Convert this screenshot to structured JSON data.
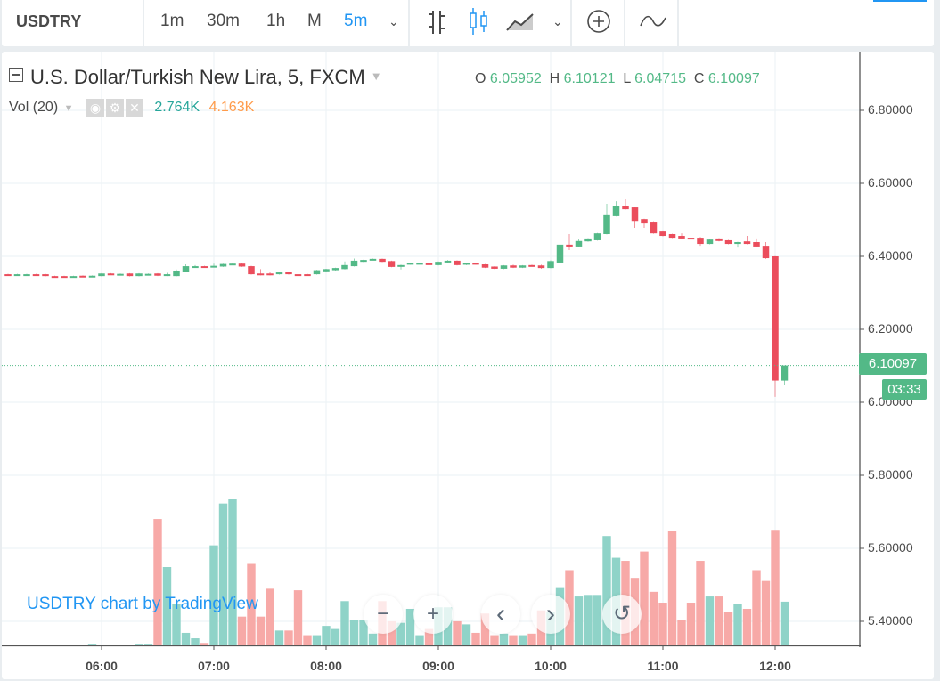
{
  "toolbar": {
    "symbol": "USDTRY",
    "intervals": [
      "1m",
      "30m",
      "1h",
      "M",
      "5m"
    ],
    "active_interval": "5m",
    "icons": [
      "chevron-down-icon",
      "bar-chart-icon",
      "candlestick-icon",
      "area-chart-icon",
      "chevron-down-icon",
      "add-compare-icon",
      "indicators-icon"
    ],
    "accent": "#2196f3"
  },
  "legend": {
    "title": "U.S. Dollar/Turkish New Lira, 5, FXCM",
    "o_label": "O",
    "o": "6.05952",
    "h_label": "H",
    "h": "6.10121",
    "l_label": "L",
    "l": "6.04715",
    "c_label": "C",
    "c": "6.10097",
    "vol_label": "Vol (20)",
    "vol_value": "2.764K",
    "vol_ma": "4.163K"
  },
  "watermark": "USDTRY chart by TradingView",
  "nav_buttons": [
    {
      "name": "zoom-out",
      "glyph": "−"
    },
    {
      "name": "zoom-in",
      "glyph": "+"
    },
    {
      "name": "scroll-left",
      "glyph": "‹"
    },
    {
      "name": "scroll-right",
      "glyph": "›"
    },
    {
      "name": "reset",
      "glyph": "↺"
    }
  ],
  "last_price": "6.10097",
  "countdown": "03:33",
  "colors": {
    "up": "#53b987",
    "down": "#eb4d5c",
    "vol_up": "#8fd3c8",
    "vol_down": "#f7a9a7",
    "grid": "#eef3f6"
  },
  "chart_data": {
    "type": "candlestick",
    "price_ticks": [
      "6.80000",
      "6.60000",
      "6.40000",
      "6.20000",
      "6.00000",
      "5.80000",
      "5.60000",
      "5.40000"
    ],
    "time_ticks": [
      "06:00",
      "07:00",
      "08:00",
      "09:00",
      "10:00",
      "11:00",
      "12:00"
    ],
    "ylim": [
      5.335,
      6.95
    ],
    "volume_unit": "K",
    "candles": [
      [
        "05:10",
        6.351,
        6.352,
        6.348,
        6.349,
        0
      ],
      [
        "05:15",
        6.349,
        6.352,
        6.348,
        6.351,
        0
      ],
      [
        "05:20",
        6.349,
        6.352,
        6.348,
        6.351,
        0
      ],
      [
        "05:25",
        6.351,
        6.352,
        6.348,
        6.349,
        0
      ],
      [
        "05:30",
        6.351,
        6.352,
        6.345,
        6.346,
        0
      ],
      [
        "05:35",
        6.346,
        6.347,
        6.344,
        6.345,
        0
      ],
      [
        "05:40",
        6.346,
        6.347,
        6.344,
        6.345,
        0
      ],
      [
        "05:45",
        6.345,
        6.347,
        6.344,
        6.346,
        0
      ],
      [
        "05:50",
        6.347,
        6.348,
        6.344,
        6.345,
        0
      ],
      [
        "05:55",
        6.345,
        6.348,
        6.344,
        6.347,
        0.05
      ],
      [
        "06:00",
        6.346,
        6.354,
        6.345,
        6.353,
        0
      ],
      [
        "06:05",
        6.353,
        6.354,
        6.35,
        6.351,
        0
      ],
      [
        "06:10",
        6.351,
        6.353,
        6.35,
        6.352,
        0
      ],
      [
        "06:15",
        6.353,
        6.354,
        6.345,
        6.346,
        0
      ],
      [
        "06:20",
        6.346,
        6.354,
        6.345,
        6.353,
        0.05
      ],
      [
        "06:25",
        6.351,
        6.353,
        6.35,
        6.352,
        0.05
      ],
      [
        "06:30",
        6.353,
        6.354,
        6.346,
        6.347,
        8.1
      ],
      [
        "06:35",
        6.348,
        6.355,
        6.346,
        6.351,
        5.0
      ],
      [
        "06:40",
        6.346,
        6.364,
        6.345,
        6.361,
        2.6
      ],
      [
        "06:45",
        6.358,
        6.378,
        6.357,
        6.373,
        0.75
      ],
      [
        "06:50",
        6.371,
        6.376,
        6.37,
        6.373,
        0.4
      ],
      [
        "06:55",
        6.373,
        6.374,
        6.37,
        6.371,
        0.1
      ],
      [
        "07:00",
        6.371,
        6.38,
        6.37,
        6.374,
        6.4
      ],
      [
        "07:05",
        6.372,
        6.38,
        6.371,
        6.379,
        9.1
      ],
      [
        "07:10",
        6.378,
        6.381,
        6.377,
        6.38,
        9.4
      ],
      [
        "07:15",
        6.38,
        6.383,
        6.371,
        6.372,
        1.8
      ],
      [
        "07:20",
        6.373,
        6.374,
        6.35,
        6.351,
        5.2
      ],
      [
        "07:25",
        6.353,
        6.365,
        6.348,
        6.349,
        1.8
      ],
      [
        "07:30",
        6.353,
        6.358,
        6.348,
        6.349,
        3.6
      ],
      [
        "07:35",
        6.351,
        6.357,
        6.35,
        6.356,
        0.9
      ],
      [
        "07:40",
        6.357,
        6.358,
        6.35,
        6.351,
        0.9
      ],
      [
        "07:45",
        6.351,
        6.352,
        6.348,
        6.349,
        3.5
      ],
      [
        "07:50",
        6.351,
        6.352,
        6.348,
        6.349,
        0.6
      ],
      [
        "07:55",
        6.351,
        6.363,
        6.35,
        6.362,
        0.6
      ],
      [
        "08:00",
        6.359,
        6.366,
        6.358,
        6.365,
        1.2
      ],
      [
        "08:05",
        6.362,
        6.369,
        6.361,
        6.368,
        1.0
      ],
      [
        "08:10",
        6.365,
        6.386,
        6.364,
        6.376,
        2.8
      ],
      [
        "08:15",
        6.373,
        6.394,
        6.372,
        6.388,
        1.6
      ],
      [
        "08:20",
        6.385,
        6.391,
        6.384,
        6.39,
        1.6
      ],
      [
        "08:25",
        6.39,
        6.394,
        6.389,
        6.393,
        0.7
      ],
      [
        "08:30",
        6.393,
        6.394,
        6.384,
        6.385,
        2.8
      ],
      [
        "08:35",
        6.387,
        6.388,
        6.37,
        6.371,
        1.5
      ],
      [
        "08:40",
        6.372,
        6.377,
        6.364,
        6.376,
        1.4
      ],
      [
        "08:45",
        6.378,
        6.383,
        6.377,
        6.382,
        2.3
      ],
      [
        "08:50",
        6.381,
        6.383,
        6.38,
        6.382,
        0.6
      ],
      [
        "08:55",
        6.382,
        6.388,
        6.375,
        6.376,
        1.0
      ],
      [
        "09:00",
        6.376,
        6.386,
        6.375,
        6.385,
        2.4
      ],
      [
        "09:05",
        6.384,
        6.39,
        6.383,
        6.388,
        2.4
      ],
      [
        "09:10",
        6.388,
        6.389,
        6.375,
        6.376,
        1.5
      ],
      [
        "09:15",
        6.377,
        6.383,
        6.376,
        6.382,
        1.3
      ],
      [
        "09:20",
        6.382,
        6.383,
        6.377,
        6.378,
        0.75
      ],
      [
        "09:25",
        6.378,
        6.379,
        6.368,
        6.369,
        2.0
      ],
      [
        "09:30",
        6.372,
        6.373,
        6.365,
        6.366,
        0.6
      ],
      [
        "09:35",
        6.366,
        6.376,
        6.365,
        6.375,
        0.7
      ],
      [
        "09:40",
        6.375,
        6.377,
        6.368,
        6.369,
        0.6
      ],
      [
        "09:45",
        6.369,
        6.376,
        6.368,
        6.375,
        0.6
      ],
      [
        "09:50",
        6.376,
        6.377,
        6.372,
        6.373,
        0.7
      ],
      [
        "09:55",
        6.375,
        6.377,
        6.366,
        6.368,
        2.2
      ],
      [
        "10:00",
        6.368,
        6.389,
        6.367,
        6.387,
        2.1
      ],
      [
        "10:05",
        6.383,
        6.444,
        6.382,
        6.432,
        3.7
      ],
      [
        "10:10",
        6.432,
        6.461,
        6.417,
        6.427,
        4.8
      ],
      [
        "10:15",
        6.427,
        6.447,
        6.426,
        6.442,
        3.1
      ],
      [
        "10:20",
        6.441,
        6.45,
        6.44,
        6.449,
        3.2
      ],
      [
        "10:25",
        6.444,
        6.464,
        6.443,
        6.463,
        3.2
      ],
      [
        "10:30",
        6.461,
        6.544,
        6.46,
        6.515,
        7.0
      ],
      [
        "10:35",
        6.51,
        6.551,
        6.509,
        6.539,
        5.6
      ],
      [
        "10:40",
        6.539,
        6.556,
        6.528,
        6.529,
        5.4
      ],
      [
        "10:45",
        6.534,
        6.535,
        6.478,
        6.497,
        4.3
      ],
      [
        "10:50",
        6.502,
        6.503,
        6.478,
        6.49,
        6.0
      ],
      [
        "10:55",
        6.495,
        6.496,
        6.462,
        6.463,
        3.4
      ],
      [
        "11:00",
        6.468,
        6.471,
        6.455,
        6.456,
        2.7
      ],
      [
        "11:05",
        6.461,
        6.462,
        6.45,
        6.451,
        7.3
      ],
      [
        "11:10",
        6.456,
        6.463,
        6.448,
        6.449,
        1.6
      ],
      [
        "11:15",
        6.451,
        6.463,
        6.448,
        6.449,
        2.7
      ],
      [
        "11:20",
        6.451,
        6.453,
        6.429,
        6.434,
        5.4
      ],
      [
        "11:25",
        6.434,
        6.447,
        6.433,
        6.446,
        3.1
      ],
      [
        "11:30",
        6.449,
        6.45,
        6.441,
        6.442,
        3.1
      ],
      [
        "11:35",
        6.444,
        6.445,
        6.433,
        6.434,
        2.1
      ],
      [
        "11:40",
        6.434,
        6.44,
        6.424,
        6.439,
        2.6
      ],
      [
        "11:45",
        6.441,
        6.456,
        6.433,
        6.434,
        2.3
      ],
      [
        "11:50",
        6.439,
        6.449,
        6.426,
        6.427,
        4.8
      ],
      [
        "11:55",
        6.429,
        6.439,
        6.393,
        6.395,
        4.1
      ],
      [
        "12:00",
        6.4,
        6.401,
        6.015,
        6.0596,
        7.4
      ],
      [
        "12:05",
        6.05952,
        6.10121,
        6.04715,
        6.10097,
        2.764
      ]
    ]
  }
}
